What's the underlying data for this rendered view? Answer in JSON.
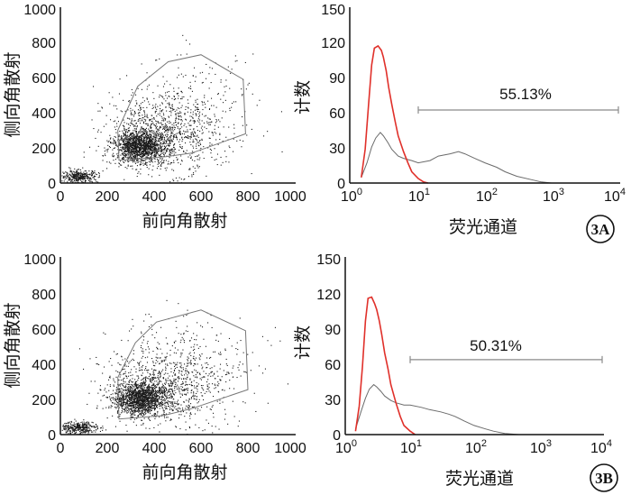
{
  "figure": {
    "panels": [
      {
        "tag": "3A",
        "scatter": {
          "xlabel": "前向角散射",
          "ylabel": "侧向角散射",
          "xticks": [
            "0",
            "200",
            "400",
            "600",
            "800",
            "1000"
          ],
          "yticks": [
            "0",
            "200",
            "400",
            "600",
            "800",
            "1000"
          ]
        },
        "histogram": {
          "xlabel": "荧光通道",
          "ylabel": "计数",
          "yticks": [
            "0",
            "30",
            "60",
            "90",
            "120",
            "150"
          ],
          "gate_percent": "55.13%"
        }
      },
      {
        "tag": "3B",
        "scatter": {
          "xlabel": "前向角散射",
          "ylabel": "侧向角散射",
          "xticks": [
            "0",
            "200",
            "400",
            "600",
            "800",
            "1000"
          ],
          "yticks": [
            "0",
            "200",
            "400",
            "600",
            "800",
            "1000"
          ]
        },
        "histogram": {
          "xlabel": "荧光通道",
          "ylabel": "计数",
          "yticks": [
            "0",
            "30",
            "60",
            "90",
            "120",
            "150"
          ],
          "gate_percent": "50.31%"
        }
      }
    ],
    "colors": {
      "control_series": "#e0302a",
      "sample_series": "#6b6b6b",
      "axis": "#111111",
      "gate_bar": "#8a8a8a"
    }
  },
  "chart_data": [
    {
      "panel": "3A",
      "type": "scatter",
      "xlabel": "前向角散射",
      "ylabel": "侧向角散射",
      "xlim": [
        0,
        1000
      ],
      "ylim": [
        0,
        1000
      ],
      "gate_polygon": [
        [
          250,
          130
        ],
        [
          245,
          300
        ],
        [
          330,
          550
        ],
        [
          460,
          690
        ],
        [
          600,
          730
        ],
        [
          780,
          590
        ],
        [
          790,
          280
        ],
        [
          560,
          170
        ],
        [
          450,
          150
        ]
      ]
    },
    {
      "panel": "3A",
      "type": "line",
      "xscale": "log",
      "xlabel": "荧光通道",
      "ylabel": "计数",
      "xlim": [
        1,
        10000
      ],
      "ylim": [
        0,
        150
      ],
      "series": [
        {
          "x": [
            1.4,
            1.6,
            1.8,
            2.0,
            2.2,
            2.5,
            2.8,
            3.0,
            3.3,
            3.6,
            4.0,
            4.5,
            5,
            6,
            7,
            8,
            10,
            12,
            14
          ],
          "y": [
            5,
            30,
            70,
            105,
            120,
            122,
            118,
            112,
            100,
            85,
            70,
            55,
            42,
            28,
            18,
            10,
            4,
            1,
            0
          ]
        },
        {
          "x": [
            1.4,
            1.7,
            2.0,
            2.3,
            2.7,
            3.0,
            3.5,
            4,
            5,
            6,
            8,
            10,
            15,
            20,
            30,
            40,
            50,
            70,
            100,
            150,
            200,
            300,
            500,
            700,
            1000
          ],
          "y": [
            5,
            18,
            32,
            40,
            45,
            42,
            36,
            30,
            24,
            22,
            20,
            18,
            20,
            24,
            26,
            28,
            26,
            22,
            18,
            14,
            10,
            6,
            3,
            1,
            0
          ]
        }
      ],
      "gate_range": [
        10,
        10000
      ],
      "gate_level": 65,
      "gate_label": "55.13%"
    },
    {
      "panel": "3B",
      "type": "scatter",
      "xlabel": "前向角散射",
      "ylabel": "侧向角散射",
      "xlim": [
        0,
        1000
      ],
      "ylim": [
        0,
        1000
      ],
      "gate_polygon": [
        [
          250,
          90
        ],
        [
          245,
          330
        ],
        [
          320,
          530
        ],
        [
          410,
          650
        ],
        [
          600,
          720
        ],
        [
          790,
          600
        ],
        [
          800,
          260
        ],
        [
          560,
          150
        ],
        [
          440,
          110
        ]
      ]
    },
    {
      "panel": "3B",
      "type": "line",
      "xscale": "log",
      "xlabel": "荧光通道",
      "ylabel": "计数",
      "xlim": [
        1,
        10000
      ],
      "ylim": [
        0,
        150
      ],
      "series": [
        {
          "x": [
            1.4,
            1.6,
            1.8,
            2.0,
            2.2,
            2.5,
            2.8,
            3.0,
            3.3,
            3.6,
            4.0,
            4.5,
            5,
            6,
            7,
            8,
            10,
            12
          ],
          "y": [
            3,
            25,
            60,
            100,
            120,
            121,
            115,
            110,
            100,
            88,
            72,
            58,
            44,
            28,
            16,
            8,
            3,
            0
          ]
        },
        {
          "x": [
            1.4,
            1.7,
            2.0,
            2.3,
            2.7,
            3.0,
            3.5,
            4,
            5,
            6,
            8,
            10,
            15,
            20,
            30,
            40,
            50,
            70,
            100,
            150,
            200,
            300,
            500
          ],
          "y": [
            5,
            20,
            32,
            40,
            44,
            42,
            38,
            34,
            30,
            28,
            26,
            26,
            24,
            22,
            20,
            18,
            16,
            12,
            8,
            5,
            3,
            1,
            0
          ]
        }
      ],
      "gate_range": [
        10,
        10000
      ],
      "gate_level": 66,
      "gate_label": "50.31%"
    }
  ]
}
